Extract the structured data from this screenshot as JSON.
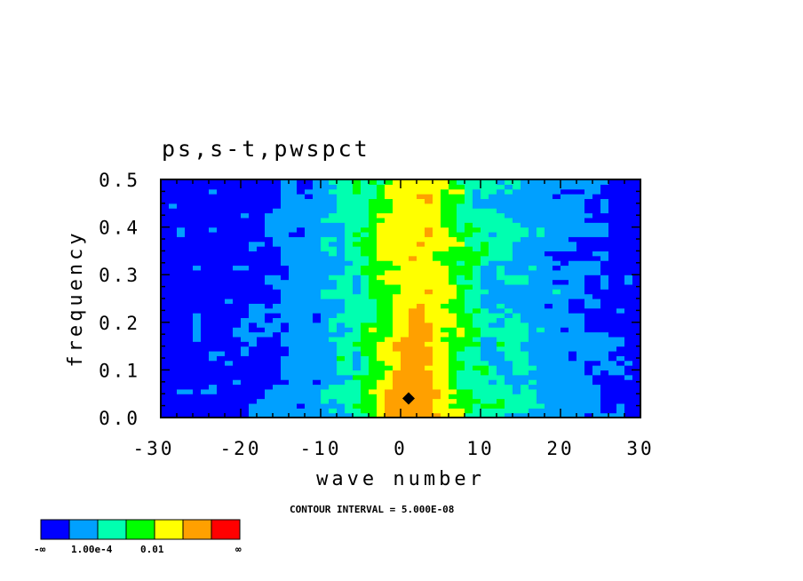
{
  "chart_data": {
    "type": "heatmap",
    "title": "ps,s-t,pwspct",
    "xlabel": "wave number",
    "ylabel": "frequency",
    "xlim": [
      -30,
      30
    ],
    "ylim": [
      0.0,
      0.5
    ],
    "xticks": [
      "-30",
      "-20",
      "-10",
      "0",
      "10",
      "20",
      "30"
    ],
    "yticks": [
      "0.0",
      "0.1",
      "0.2",
      "0.3",
      "0.4",
      "0.5"
    ],
    "contour_interval_label": "CONTOUR INTERVAL = 5.000E-08",
    "colorbar": {
      "colors": [
        "#0000ff",
        "#00a0ff",
        "#00ffb0",
        "#00ff00",
        "#ffff00",
        "#ffa000",
        "#ff0000"
      ],
      "labels": [
        "-∞",
        "1.00e-4",
        "0.01",
        "∞"
      ]
    },
    "peak": {
      "x": 1,
      "y": 0.04
    }
  }
}
